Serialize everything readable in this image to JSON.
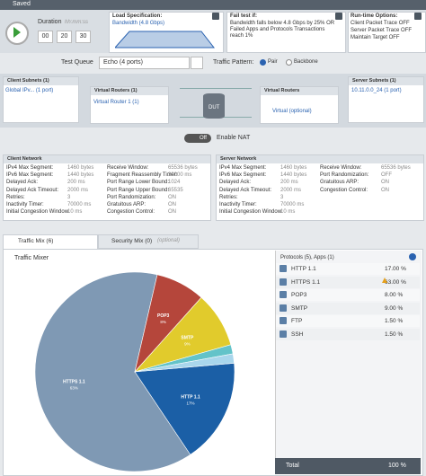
{
  "header": {
    "title": "Saved"
  },
  "duration": {
    "label": "Duration",
    "hint": "hh:mm:ss",
    "hours": "00",
    "minutes": "20",
    "seconds": "30"
  },
  "load_spec": {
    "title": "Load Specification:",
    "value": "Bandwidth (4.8 Gbps)"
  },
  "fail_test": {
    "title": "Fail test if:",
    "text": "Bandwidth falls below 4.8 Gbps by 25% OR Failed Apps and Protocols Transactions reach 1%"
  },
  "runtime": {
    "title": "Run-time Options:",
    "items": [
      "Client Packet Trace OFF",
      "Server Packet Trace OFF",
      "Maintain Target OFF"
    ]
  },
  "test_queue": {
    "label": "Test Queue",
    "value": "Echo (4 ports)"
  },
  "traffic_pattern": {
    "label": "Traffic Pattern:",
    "options": [
      "Pair",
      "Backbone"
    ]
  },
  "topology": {
    "client_subnets": "Client Subnets (1)",
    "client_item": "Global IPv... (1 port)",
    "client_routers": "Virtual Routers (1)",
    "client_router_item": "Virtual Router 1 (1)",
    "dut": "DUT",
    "server_routers": "Virtual Routers",
    "server_router_item": "Virtual (optional)",
    "server_subnets": "Server Subnets (1)",
    "server_item": "10.11.0.0_24 (1 port)"
  },
  "nat": {
    "toggle": "Off",
    "label": "Enable NAT"
  },
  "client_network": {
    "title": "Client Network",
    "left": [
      [
        "IPv4 Max Segment:",
        "1460 bytes"
      ],
      [
        "IPv6 Max Segment:",
        "1440 bytes"
      ],
      [
        "Delayed Ack:",
        "200 ms"
      ],
      [
        "Delayed Ack Timeout:",
        "2000 ms"
      ],
      [
        "Retries:",
        "3"
      ],
      [
        "Inactivity Timer:",
        "70000 ms"
      ],
      [
        "Initial Congestion Window:",
        "10 ms"
      ]
    ],
    "right": [
      [
        "Receive Window:",
        "65536 bytes"
      ],
      [
        "Fragment Reassembly Timer:",
        "30000 ms"
      ],
      [
        "Port Range Lower Bound:",
        "1024"
      ],
      [
        "Port Range Upper Bound:",
        "65535"
      ],
      [
        "Port Randomization:",
        "ON"
      ],
      [
        "Gratuitous ARP:",
        "ON"
      ],
      [
        "Congestion Control:",
        "ON"
      ]
    ]
  },
  "server_network": {
    "title": "Server Network",
    "left": [
      [
        "IPv4 Max Segment:",
        "1460 bytes"
      ],
      [
        "IPv6 Max Segment:",
        "1440 bytes"
      ],
      [
        "Delayed Ack:",
        "200 ms"
      ],
      [
        "Delayed Ack Timeout:",
        "2000 ms"
      ],
      [
        "Retries:",
        "3"
      ],
      [
        "Inactivity Timer:",
        "70000 ms"
      ],
      [
        "Initial Congestion Window:",
        "10 ms"
      ]
    ],
    "right": [
      [
        "Receive Window:",
        "65536 bytes"
      ],
      [
        "Port Randomization:",
        "OFF"
      ],
      [
        "Gratuitous ARP:",
        "ON"
      ],
      [
        "Congestion Control:",
        "ON"
      ]
    ]
  },
  "tabs": {
    "traffic": "Traffic Mix (6)",
    "security": "Security Mix (0)",
    "security_hint": "(optional)"
  },
  "mixer": {
    "title": "Traffic Mixer",
    "table_header": "Protocols (5), Apps (1)",
    "total_label": "Total",
    "total_value": "100 %"
  },
  "chart_data": {
    "type": "pie",
    "categories": [
      "HTTP 1.1",
      "HTTPS 1.1",
      "POP3",
      "SMTP",
      "FTP",
      "SSH"
    ],
    "values": [
      17,
      63,
      8,
      9,
      1.5,
      1.5
    ],
    "value_labels": [
      "17.00 %",
      "63.00 %",
      "8.00 %",
      "9.00 %",
      "1.50 %",
      "1.50 %"
    ],
    "slice_labels": [
      "17%",
      "63%",
      "8%",
      "9%",
      null,
      null
    ],
    "colors": [
      "#1b5fa6",
      "#7f99b4",
      "#b5463b",
      "#e1cb2c",
      "#63c3c9",
      "#a9d6ec"
    ]
  }
}
